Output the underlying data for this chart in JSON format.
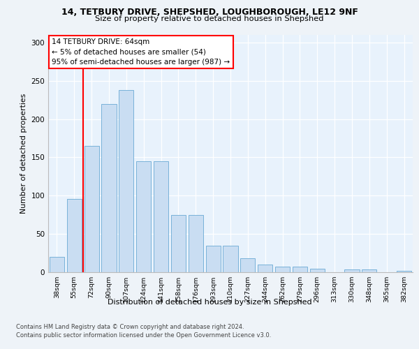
{
  "title1": "14, TETBURY DRIVE, SHEPSHED, LOUGHBOROUGH, LE12 9NF",
  "title2": "Size of property relative to detached houses in Shepshed",
  "xlabel": "Distribution of detached houses by size in Shepshed",
  "ylabel": "Number of detached properties",
  "categories": [
    "38sqm",
    "55sqm",
    "72sqm",
    "90sqm",
    "107sqm",
    "124sqm",
    "141sqm",
    "158sqm",
    "176sqm",
    "193sqm",
    "210sqm",
    "227sqm",
    "244sqm",
    "262sqm",
    "279sqm",
    "296sqm",
    "313sqm",
    "330sqm",
    "348sqm",
    "365sqm",
    "382sqm"
  ],
  "values": [
    20,
    96,
    165,
    220,
    238,
    145,
    145,
    75,
    75,
    35,
    35,
    18,
    10,
    7,
    7,
    5,
    0,
    4,
    4,
    0,
    2
  ],
  "bar_color": "#c9ddf2",
  "bar_edge_color": "#6aaad4",
  "annotation_text": "14 TETBURY DRIVE: 64sqm\n← 5% of detached houses are smaller (54)\n95% of semi-detached houses are larger (987) →",
  "red_line_x": 1.5,
  "ylim": [
    0,
    310
  ],
  "yticks": [
    0,
    50,
    100,
    150,
    200,
    250,
    300
  ],
  "footer1": "Contains HM Land Registry data © Crown copyright and database right 2024.",
  "footer2": "Contains public sector information licensed under the Open Government Licence v3.0.",
  "fig_bg_color": "#eef3f8",
  "plot_bg_color": "#e8f2fc"
}
